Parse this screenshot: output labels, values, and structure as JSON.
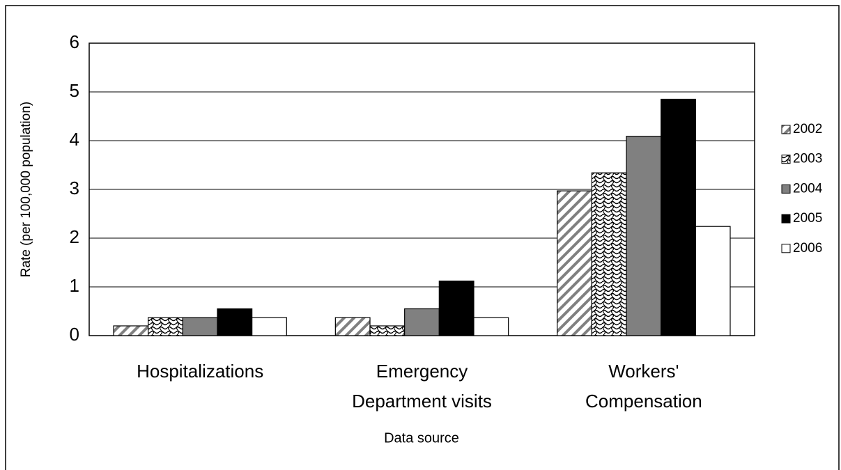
{
  "chart_data": {
    "type": "bar",
    "ylabel": "Rate (per 100,000 population)",
    "xlabel": "Data source",
    "categories": [
      [
        "Hospitalizations"
      ],
      [
        "Emergency",
        "Department visits"
      ],
      [
        "Workers'",
        "Compensation"
      ]
    ],
    "series": [
      {
        "name": "2002",
        "color": "#808080",
        "pattern": "diagonal",
        "values": [
          0.2,
          0.37,
          2.97
        ]
      },
      {
        "name": "2003",
        "color": "#000000",
        "pattern": "wave",
        "values": [
          0.37,
          0.2,
          3.34
        ]
      },
      {
        "name": "2004",
        "color": "#808080",
        "pattern": "solid",
        "values": [
          0.37,
          0.55,
          4.09
        ]
      },
      {
        "name": "2005",
        "color": "#000000",
        "pattern": "solid",
        "values": [
          0.55,
          1.12,
          4.85
        ]
      },
      {
        "name": "2006",
        "color": "#ffffff",
        "pattern": "solid",
        "values": [
          0.37,
          0.37,
          2.24
        ]
      }
    ],
    "ylim": [
      0,
      6
    ],
    "yticks": [
      0,
      1,
      2,
      3,
      4,
      5,
      6
    ],
    "grid": true,
    "legend": "right"
  }
}
